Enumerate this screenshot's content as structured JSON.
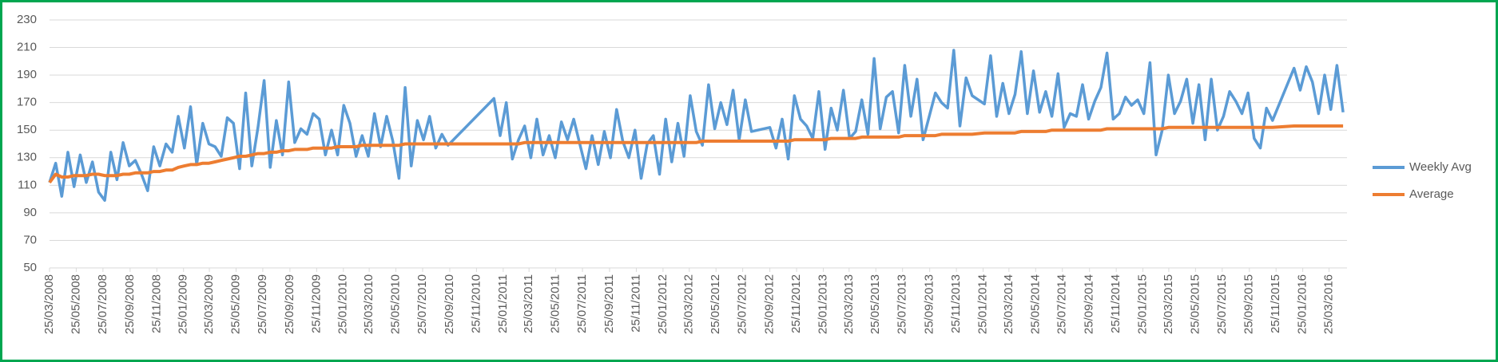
{
  "chart_data": {
    "type": "line",
    "x": [
      "2008-03-25",
      "2008-04-08",
      "2008-04-22",
      "2008-05-06",
      "2008-05-20",
      "2008-06-03",
      "2008-06-17",
      "2008-07-01",
      "2008-07-15",
      "2008-07-29",
      "2008-08-12",
      "2008-08-26",
      "2008-09-09",
      "2008-09-23",
      "2008-10-07",
      "2008-10-21",
      "2008-11-04",
      "2008-11-18",
      "2008-12-02",
      "2008-12-16",
      "2008-12-30",
      "2009-01-13",
      "2009-01-27",
      "2009-02-10",
      "2009-02-24",
      "2009-03-10",
      "2009-03-24",
      "2009-04-07",
      "2009-04-21",
      "2009-05-05",
      "2009-05-19",
      "2009-06-02",
      "2009-06-16",
      "2009-06-30",
      "2009-07-14",
      "2009-07-28",
      "2009-08-11",
      "2009-08-25",
      "2009-09-08",
      "2009-09-22",
      "2009-10-06",
      "2009-10-20",
      "2009-11-03",
      "2009-11-17",
      "2009-12-01",
      "2009-12-15",
      "2009-12-29",
      "2010-01-12",
      "2010-01-26",
      "2010-02-09",
      "2010-02-23",
      "2010-03-09",
      "2010-03-23",
      "2010-04-06",
      "2010-04-20",
      "2010-05-04",
      "2010-05-18",
      "2010-06-01",
      "2010-06-15",
      "2010-06-29",
      "2010-07-13",
      "2010-07-27",
      "2010-08-10",
      "2010-08-24",
      "2010-09-07",
      "2010-09-21",
      "2011-01-04",
      "2011-01-18",
      "2011-02-01",
      "2011-02-15",
      "2011-03-01",
      "2011-03-15",
      "2011-03-29",
      "2011-04-12",
      "2011-04-26",
      "2011-05-10",
      "2011-05-24",
      "2011-06-07",
      "2011-06-21",
      "2011-07-05",
      "2011-07-19",
      "2011-08-02",
      "2011-08-16",
      "2011-08-30",
      "2011-09-13",
      "2011-09-27",
      "2011-10-11",
      "2011-10-25",
      "2011-11-08",
      "2011-11-22",
      "2011-12-06",
      "2011-12-20",
      "2012-01-03",
      "2012-01-17",
      "2012-01-31",
      "2012-02-14",
      "2012-02-28",
      "2012-03-13",
      "2012-03-27",
      "2012-04-10",
      "2012-04-24",
      "2012-05-08",
      "2012-05-22",
      "2012-06-05",
      "2012-06-19",
      "2012-07-03",
      "2012-07-17",
      "2012-07-31",
      "2012-08-14",
      "2012-09-25",
      "2012-10-09",
      "2012-10-23",
      "2012-11-06",
      "2012-11-20",
      "2012-12-04",
      "2012-12-18",
      "2013-01-01",
      "2013-01-15",
      "2013-01-29",
      "2013-02-12",
      "2013-02-26",
      "2013-03-12",
      "2013-03-26",
      "2013-04-09",
      "2013-04-23",
      "2013-05-07",
      "2013-05-21",
      "2013-06-04",
      "2013-06-18",
      "2013-07-02",
      "2013-07-16",
      "2013-07-30",
      "2013-08-13",
      "2013-08-27",
      "2013-09-10",
      "2013-10-08",
      "2013-10-22",
      "2013-11-05",
      "2013-11-19",
      "2013-12-03",
      "2013-12-17",
      "2013-12-31",
      "2014-01-28",
      "2014-02-11",
      "2014-02-25",
      "2014-03-11",
      "2014-03-25",
      "2014-04-08",
      "2014-04-22",
      "2014-05-06",
      "2014-05-20",
      "2014-06-03",
      "2014-06-17",
      "2014-07-01",
      "2014-07-15",
      "2014-07-29",
      "2014-08-12",
      "2014-08-26",
      "2014-09-09",
      "2014-09-23",
      "2014-10-07",
      "2014-10-21",
      "2014-11-04",
      "2014-11-18",
      "2014-12-02",
      "2014-12-16",
      "2014-12-30",
      "2015-01-13",
      "2015-01-27",
      "2015-02-10",
      "2015-02-24",
      "2015-03-10",
      "2015-03-24",
      "2015-04-07",
      "2015-04-21",
      "2015-05-05",
      "2015-05-19",
      "2015-06-02",
      "2015-06-16",
      "2015-06-30",
      "2015-07-14",
      "2015-07-28",
      "2015-08-11",
      "2015-08-25",
      "2015-09-08",
      "2015-09-22",
      "2015-10-06",
      "2015-10-20",
      "2015-11-03",
      "2015-11-17",
      "2016-01-05",
      "2016-01-19",
      "2016-02-02",
      "2016-02-16",
      "2016-03-01",
      "2016-03-15",
      "2016-03-29",
      "2016-04-12",
      "2016-04-26"
    ],
    "series": [
      {
        "name": "Weekly Avg",
        "color": "#5b9bd5",
        "values": [
          112,
          126,
          102,
          134,
          109,
          132,
          112,
          127,
          105,
          99,
          134,
          114,
          141,
          124,
          128,
          118,
          106,
          138,
          124,
          140,
          134,
          160,
          137,
          167,
          125,
          155,
          140,
          138,
          131,
          159,
          155,
          122,
          177,
          124,
          152,
          186,
          123,
          157,
          132,
          185,
          141,
          151,
          147,
          162,
          158,
          132,
          150,
          132,
          168,
          155,
          131,
          146,
          131,
          162,
          138,
          160,
          142,
          115,
          181,
          124,
          157,
          143,
          160,
          137,
          147,
          139,
          173,
          146,
          170,
          129,
          143,
          153,
          130,
          158,
          132,
          146,
          130,
          156,
          143,
          158,
          140,
          122,
          146,
          125,
          149,
          130,
          165,
          142,
          130,
          150,
          115,
          140,
          146,
          118,
          158,
          127,
          155,
          131,
          175,
          149,
          139,
          183,
          151,
          170,
          154,
          179,
          143,
          172,
          149,
          152,
          137,
          158,
          129,
          175,
          158,
          153,
          144,
          178,
          136,
          166,
          150,
          179,
          144,
          149,
          172,
          147,
          202,
          151,
          174,
          178,
          148,
          197,
          160,
          187,
          143,
          177,
          170,
          166,
          208,
          153,
          188,
          175,
          169,
          204,
          160,
          184,
          162,
          176,
          207,
          162,
          193,
          163,
          178,
          160,
          191,
          152,
          162,
          160,
          183,
          158,
          171,
          181,
          206,
          158,
          162,
          174,
          168,
          172,
          162,
          199,
          132,
          150,
          190,
          162,
          171,
          187,
          155,
          183,
          143,
          187,
          150,
          160,
          178,
          171,
          162,
          177,
          144,
          137,
          166,
          157,
          195,
          179,
          196,
          185,
          162,
          190,
          165,
          197,
          163
        ]
      },
      {
        "name": "Average",
        "color": "#ed7d31",
        "values": [
          112,
          118,
          116,
          116,
          117,
          117,
          117,
          118,
          118,
          117,
          117,
          117,
          118,
          118,
          119,
          119,
          119,
          120,
          120,
          121,
          121,
          123,
          124,
          125,
          125,
          126,
          126,
          127,
          128,
          129,
          130,
          131,
          131,
          132,
          133,
          133,
          134,
          134,
          135,
          135,
          136,
          136,
          136,
          137,
          137,
          137,
          137,
          138,
          138,
          138,
          138,
          139,
          139,
          139,
          139,
          139,
          139,
          139,
          140,
          140,
          140,
          140,
          140,
          140,
          140,
          140,
          140,
          140,
          140,
          140,
          140,
          141,
          141,
          141,
          141,
          141,
          141,
          141,
          141,
          141,
          141,
          141,
          141,
          141,
          141,
          141,
          141,
          141,
          141,
          141,
          141,
          141,
          141,
          141,
          141,
          141,
          141,
          141,
          141,
          141,
          142,
          142,
          142,
          142,
          142,
          142,
          142,
          142,
          142,
          142,
          142,
          142,
          142,
          143,
          143,
          143,
          143,
          143,
          143,
          144,
          144,
          144,
          144,
          144,
          145,
          145,
          145,
          145,
          145,
          145,
          145,
          146,
          146,
          146,
          146,
          146,
          147,
          147,
          147,
          147,
          147,
          147,
          148,
          148,
          148,
          148,
          148,
          148,
          149,
          149,
          149,
          149,
          149,
          150,
          150,
          150,
          150,
          150,
          150,
          150,
          150,
          150,
          151,
          151,
          151,
          151,
          151,
          151,
          151,
          151,
          151,
          151,
          152,
          152,
          152,
          152,
          152,
          152,
          152,
          152,
          152,
          152,
          152,
          152,
          152,
          152,
          152,
          152,
          152,
          152,
          153,
          153,
          153,
          153,
          153,
          153,
          153,
          153,
          153
        ]
      }
    ],
    "xlim": [
      "2008-03-25",
      "2016-05-05"
    ],
    "xticks": [
      {
        "value": "2008-03-25",
        "label": "25/03/2008"
      },
      {
        "value": "2008-05-25",
        "label": "25/05/2008"
      },
      {
        "value": "2008-07-25",
        "label": "25/07/2008"
      },
      {
        "value": "2008-09-25",
        "label": "25/09/2008"
      },
      {
        "value": "2008-11-25",
        "label": "25/11/2008"
      },
      {
        "value": "2009-01-25",
        "label": "25/01/2009"
      },
      {
        "value": "2009-03-25",
        "label": "25/03/2009"
      },
      {
        "value": "2009-05-25",
        "label": "25/05/2009"
      },
      {
        "value": "2009-07-25",
        "label": "25/07/2009"
      },
      {
        "value": "2009-09-25",
        "label": "25/09/2009"
      },
      {
        "value": "2009-11-25",
        "label": "25/11/2009"
      },
      {
        "value": "2010-01-25",
        "label": "25/01/2010"
      },
      {
        "value": "2010-03-25",
        "label": "25/03/2010"
      },
      {
        "value": "2010-05-25",
        "label": "25/05/2010"
      },
      {
        "value": "2010-07-25",
        "label": "25/07/2010"
      },
      {
        "value": "2010-09-25",
        "label": "25/09/2010"
      },
      {
        "value": "2010-11-25",
        "label": "25/11/2010"
      },
      {
        "value": "2011-01-25",
        "label": "25/01/2011"
      },
      {
        "value": "2011-03-25",
        "label": "25/03/2011"
      },
      {
        "value": "2011-05-25",
        "label": "25/05/2011"
      },
      {
        "value": "2011-07-25",
        "label": "25/07/2011"
      },
      {
        "value": "2011-09-25",
        "label": "25/09/2011"
      },
      {
        "value": "2011-11-25",
        "label": "25/11/2011"
      },
      {
        "value": "2012-01-25",
        "label": "25/01/2012"
      },
      {
        "value": "2012-03-25",
        "label": "25/03/2012"
      },
      {
        "value": "2012-05-25",
        "label": "25/05/2012"
      },
      {
        "value": "2012-07-25",
        "label": "25/07/2012"
      },
      {
        "value": "2012-09-25",
        "label": "25/09/2012"
      },
      {
        "value": "2012-11-25",
        "label": "25/11/2012"
      },
      {
        "value": "2013-01-25",
        "label": "25/01/2013"
      },
      {
        "value": "2013-03-25",
        "label": "25/03/2013"
      },
      {
        "value": "2013-05-25",
        "label": "25/05/2013"
      },
      {
        "value": "2013-07-25",
        "label": "25/07/2013"
      },
      {
        "value": "2013-09-25",
        "label": "25/09/2013"
      },
      {
        "value": "2013-11-25",
        "label": "25/11/2013"
      },
      {
        "value": "2014-01-25",
        "label": "25/01/2014"
      },
      {
        "value": "2014-03-25",
        "label": "25/03/2014"
      },
      {
        "value": "2014-05-25",
        "label": "25/05/2014"
      },
      {
        "value": "2014-07-25",
        "label": "25/07/2014"
      },
      {
        "value": "2014-09-25",
        "label": "25/09/2014"
      },
      {
        "value": "2014-11-25",
        "label": "25/11/2014"
      },
      {
        "value": "2015-01-25",
        "label": "25/01/2015"
      },
      {
        "value": "2015-03-25",
        "label": "25/03/2015"
      },
      {
        "value": "2015-05-25",
        "label": "25/05/2015"
      },
      {
        "value": "2015-07-25",
        "label": "25/07/2015"
      },
      {
        "value": "2015-09-25",
        "label": "25/09/2015"
      },
      {
        "value": "2015-11-25",
        "label": "25/11/2015"
      },
      {
        "value": "2016-01-25",
        "label": "25/01/2016"
      },
      {
        "value": "2016-03-25",
        "label": "25/03/2016"
      }
    ],
    "ylim": [
      50,
      230
    ],
    "yticks": [
      50,
      70,
      90,
      110,
      130,
      150,
      170,
      190,
      210,
      230
    ],
    "grid": true,
    "legend": "right"
  }
}
